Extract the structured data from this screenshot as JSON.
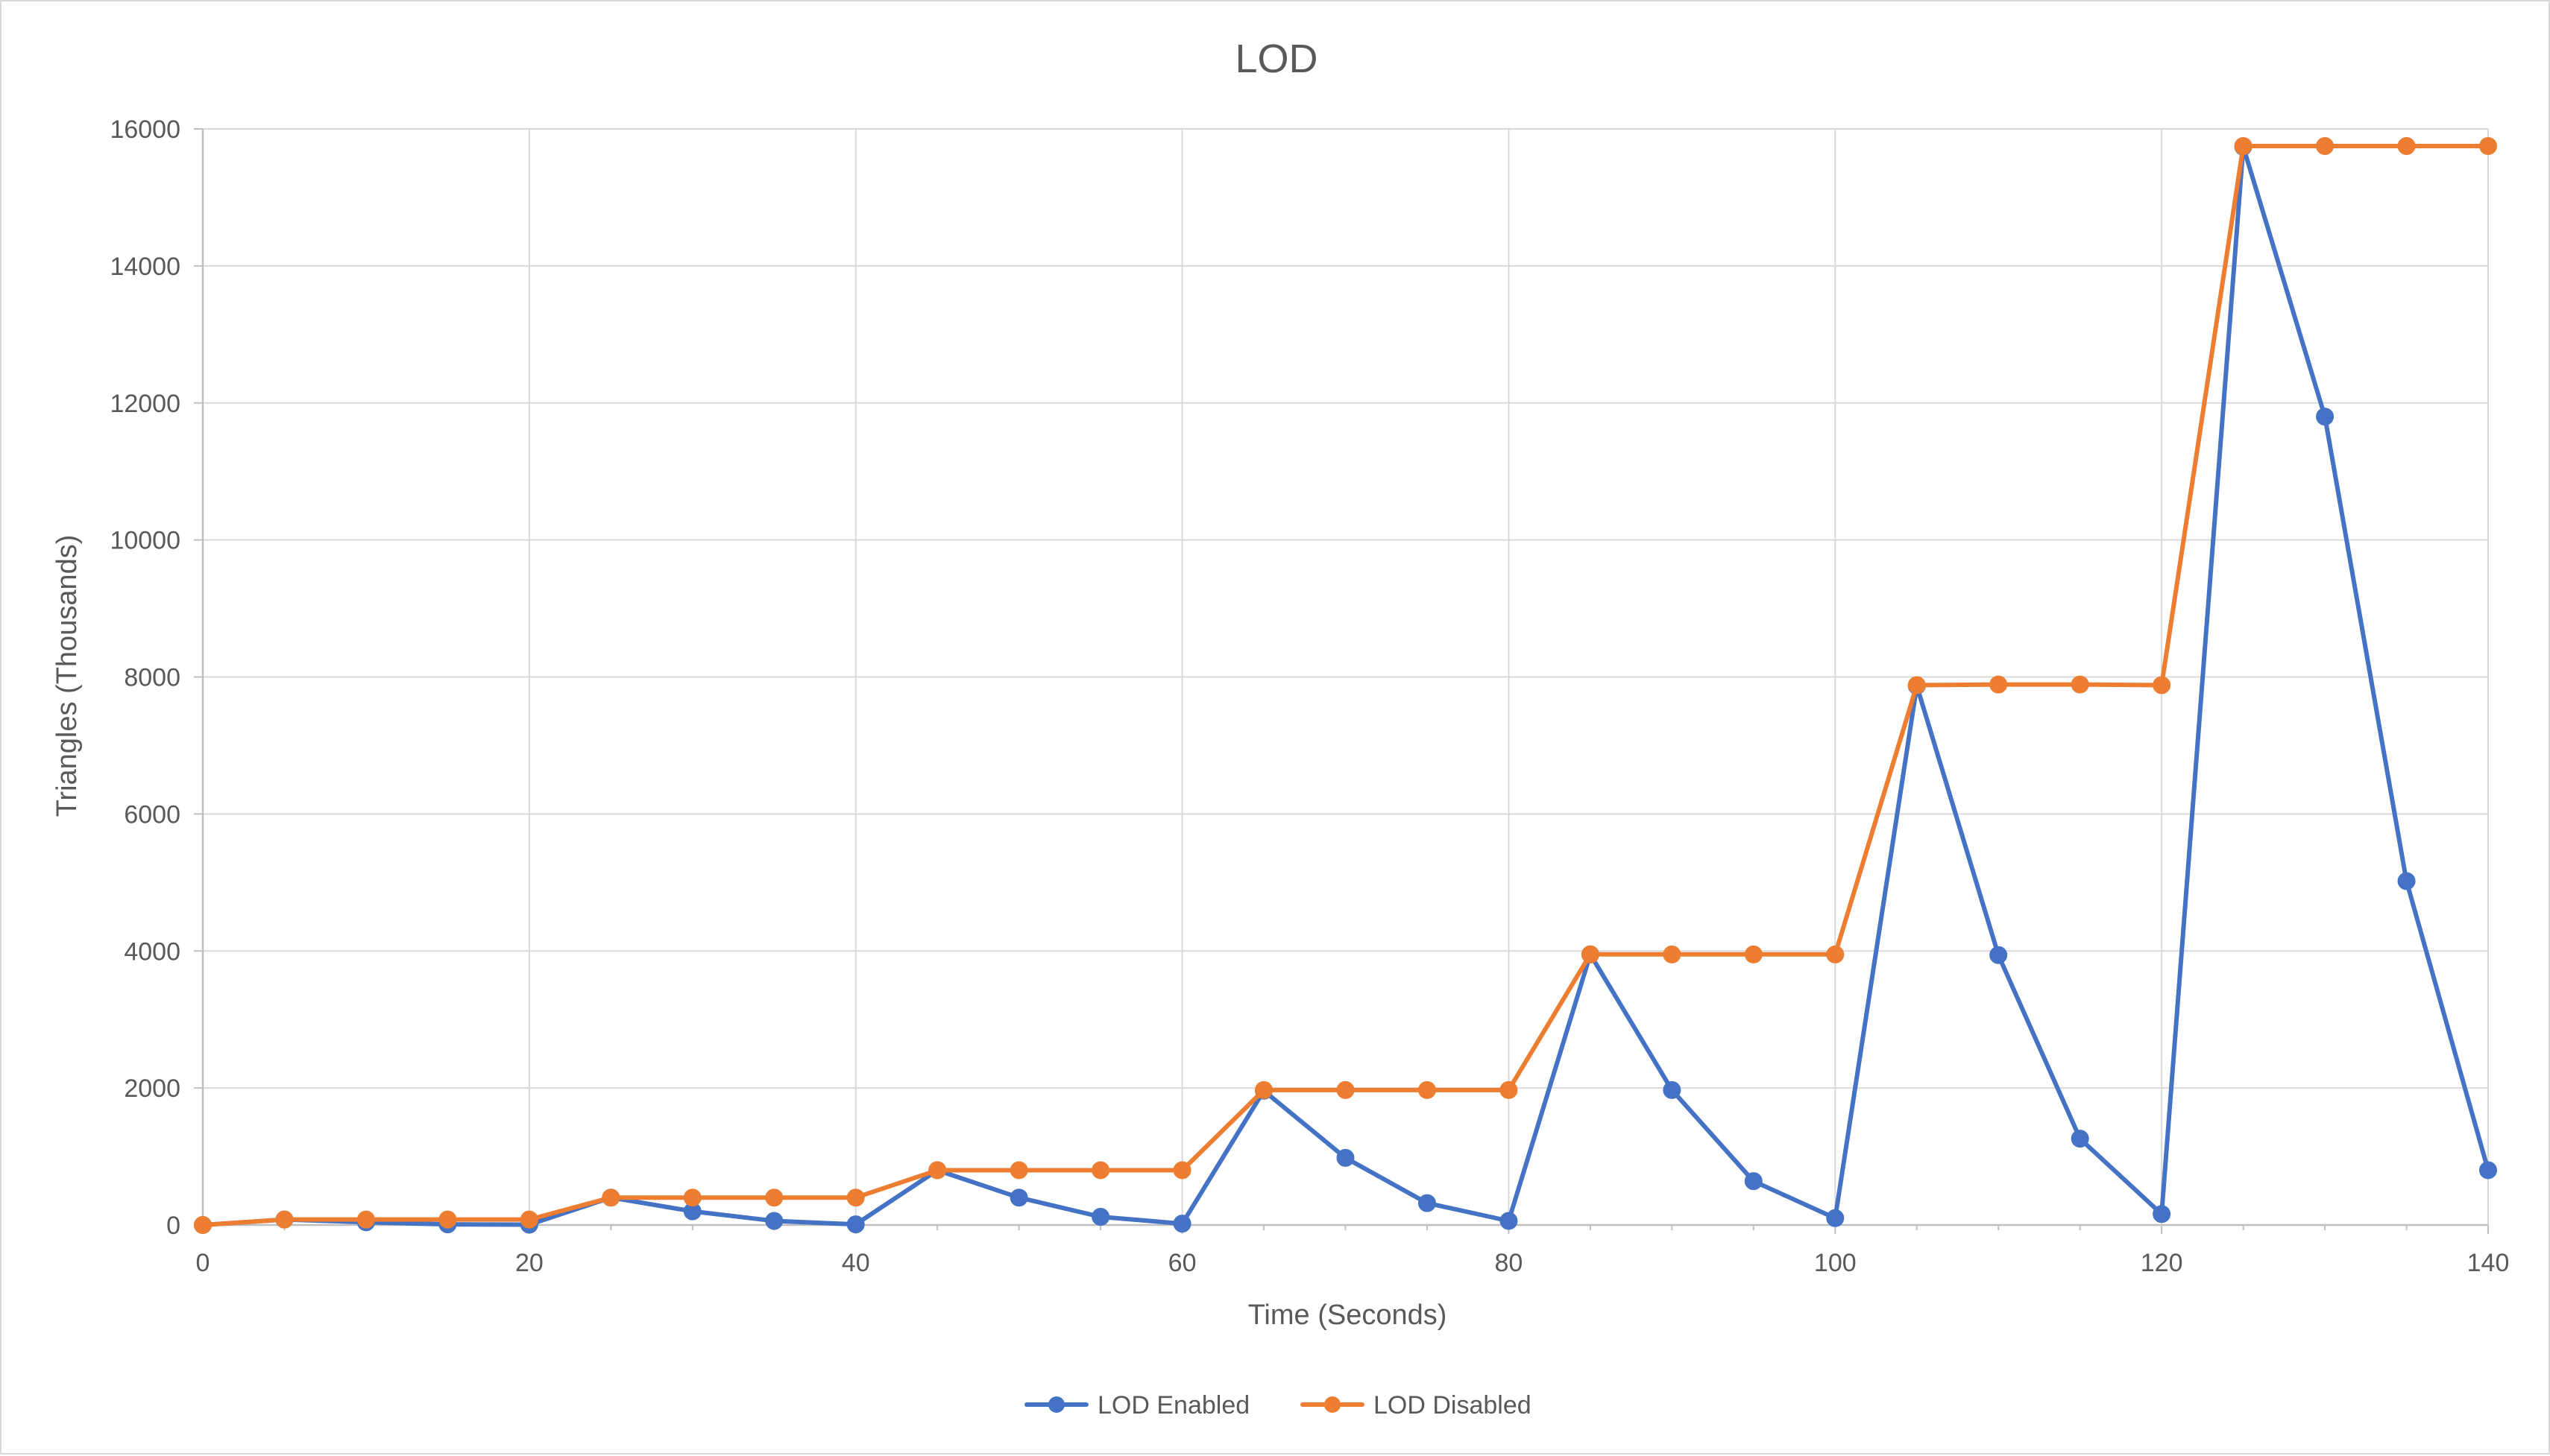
{
  "chart_data": {
    "type": "line",
    "title": "LOD",
    "xlabel": "Time (Seconds)",
    "ylabel": "Triangles (Thousands)",
    "xlim": [
      0,
      140
    ],
    "ylim": [
      0,
      16000
    ],
    "x_ticks": [
      0,
      20,
      40,
      60,
      80,
      100,
      120,
      140
    ],
    "y_ticks": [
      0,
      2000,
      4000,
      6000,
      8000,
      10000,
      12000,
      14000,
      16000
    ],
    "x_tick_labels": [
      "0",
      "20",
      "40",
      "60",
      "80",
      "100",
      "120",
      "140"
    ],
    "y_tick_labels": [
      "0",
      "2000",
      "4000",
      "6000",
      "8000",
      "10000",
      "12000",
      "14000",
      "16000"
    ],
    "grid": true,
    "legend_position": "bottom-center",
    "x": [
      0,
      5,
      10,
      15,
      20,
      25,
      30,
      35,
      40,
      45,
      50,
      55,
      60,
      65,
      70,
      75,
      80,
      85,
      90,
      95,
      100,
      105,
      110,
      115,
      120,
      125,
      130,
      135,
      140
    ],
    "series": [
      {
        "name": "LOD Enabled",
        "color": "#4472c4",
        "values": [
          0,
          80,
          40,
          10,
          5,
          400,
          200,
          60,
          10,
          800,
          400,
          120,
          20,
          1960,
          980,
          320,
          60,
          3950,
          1970,
          640,
          100,
          7870,
          3940,
          1260,
          160,
          15740,
          11800,
          5020,
          800
        ]
      },
      {
        "name": "LOD Disabled",
        "color": "#ed7d31",
        "values": [
          0,
          80,
          80,
          80,
          80,
          400,
          400,
          400,
          400,
          800,
          800,
          800,
          800,
          1970,
          1970,
          1970,
          1970,
          3950,
          3950,
          3950,
          3950,
          7880,
          7890,
          7890,
          7880,
          15750,
          15750,
          15750,
          15750
        ]
      }
    ]
  }
}
